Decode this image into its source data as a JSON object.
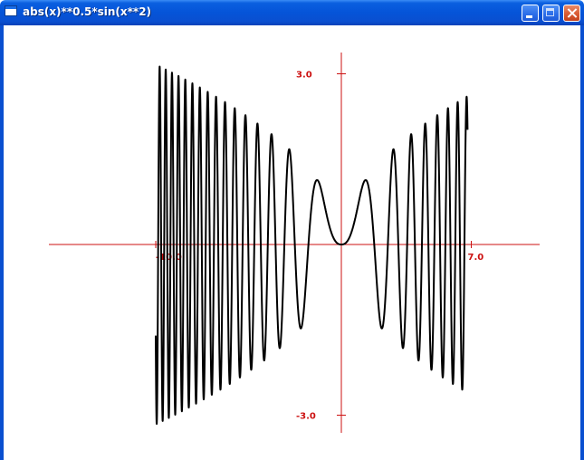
{
  "window": {
    "title": "abs(x)**0.5*sin(x**2)",
    "buttons": {
      "minimize": "minimize",
      "maximize": "maximize",
      "close": "close"
    }
  },
  "colors": {
    "axis": "#cc1111",
    "curve": "#000000",
    "titlebar": "#0554d8"
  },
  "chart_data": {
    "type": "line",
    "title": "abs(x)**0.5*sin(x**2)",
    "xlim": [
      -10,
      7
    ],
    "ylim": [
      -3,
      3
    ],
    "grid": false,
    "legend": "none",
    "x_tick_labels": [
      "-10.0",
      "7.0"
    ],
    "y_tick_labels": [
      "3.0",
      "-3.0"
    ],
    "x_ticks": [
      -10,
      7
    ],
    "y_ticks": [
      3,
      -3
    ],
    "series": [
      {
        "expression": "abs(x)**0.5*sin(x**2)",
        "x_min": -10,
        "x_max": 6.8,
        "samples": 6000
      }
    ]
  }
}
